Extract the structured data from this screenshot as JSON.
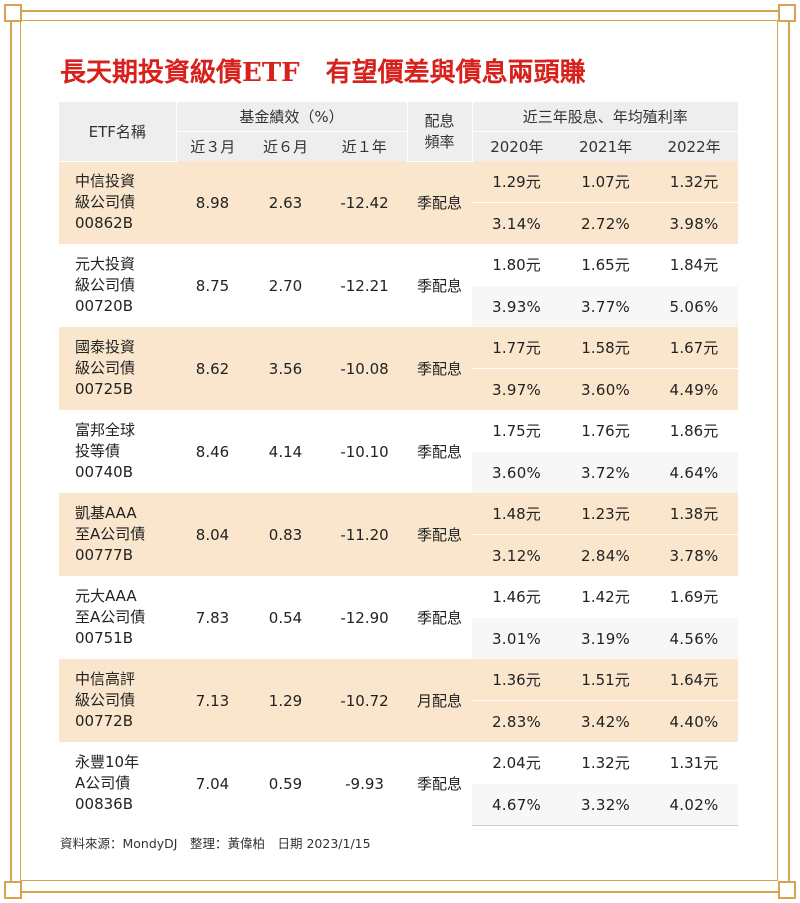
{
  "title": "長天期投資級債ETF　有望價差與債息兩頭賺",
  "headers": {
    "etf_name": "ETF名稱",
    "performance_group": "基金績效（%）",
    "perf_3m": "近３月",
    "perf_6m": "近６月",
    "perf_1y": "近１年",
    "freq_line1": "配息",
    "freq_line2": "頻率",
    "dividend_group": "近三年股息、年均殖利率",
    "y2020": "2020年",
    "y2021": "2021年",
    "y2022": "2022年"
  },
  "rows": [
    {
      "name": [
        "中信投資",
        "級公司債",
        "00862B"
      ],
      "p3m": "8.98",
      "p6m": "2.63",
      "p1y": "-12.42",
      "freq": "季配息",
      "div": [
        "1.29元",
        "1.07元",
        "1.32元"
      ],
      "yld": [
        "3.14%",
        "2.72%",
        "3.98%"
      ]
    },
    {
      "name": [
        "元大投資",
        "級公司債",
        "00720B"
      ],
      "p3m": "8.75",
      "p6m": "2.70",
      "p1y": "-12.21",
      "freq": "季配息",
      "div": [
        "1.80元",
        "1.65元",
        "1.84元"
      ],
      "yld": [
        "3.93%",
        "3.77%",
        "5.06%"
      ]
    },
    {
      "name": [
        "國泰投資",
        "級公司債",
        "00725B"
      ],
      "p3m": "8.62",
      "p6m": "3.56",
      "p1y": "-10.08",
      "freq": "季配息",
      "div": [
        "1.77元",
        "1.58元",
        "1.67元"
      ],
      "yld": [
        "3.97%",
        "3.60%",
        "4.49%"
      ]
    },
    {
      "name": [
        "富邦全球",
        "投等債",
        "00740B"
      ],
      "p3m": "8.46",
      "p6m": "4.14",
      "p1y": "-10.10",
      "freq": "季配息",
      "div": [
        "1.75元",
        "1.76元",
        "1.86元"
      ],
      "yld": [
        "3.60%",
        "3.72%",
        "4.64%"
      ]
    },
    {
      "name": [
        "凱基AAA",
        "至A公司債",
        "00777B"
      ],
      "p3m": "8.04",
      "p6m": "0.83",
      "p1y": "-11.20",
      "freq": "季配息",
      "div": [
        "1.48元",
        "1.23元",
        "1.38元"
      ],
      "yld": [
        "3.12%",
        "2.84%",
        "3.78%"
      ]
    },
    {
      "name": [
        "元大AAA",
        "至A公司債",
        "00751B"
      ],
      "p3m": "7.83",
      "p6m": "0.54",
      "p1y": "-12.90",
      "freq": "季配息",
      "div": [
        "1.46元",
        "1.42元",
        "1.69元"
      ],
      "yld": [
        "3.01%",
        "3.19%",
        "4.56%"
      ]
    },
    {
      "name": [
        "中信高評",
        "級公司債",
        "00772B"
      ],
      "p3m": "7.13",
      "p6m": "1.29",
      "p1y": "-10.72",
      "freq": "月配息",
      "div": [
        "1.36元",
        "1.51元",
        "1.64元"
      ],
      "yld": [
        "2.83%",
        "3.42%",
        "4.40%"
      ]
    },
    {
      "name": [
        "永豐10年",
        "A公司債",
        "00836B"
      ],
      "p3m": "7.04",
      "p6m": "0.59",
      "p1y": "-9.93",
      "freq": "季配息",
      "div": [
        "2.04元",
        "1.32元",
        "1.31元"
      ],
      "yld": [
        "4.67%",
        "3.32%",
        "4.02%"
      ]
    }
  ],
  "source": "資料來源：MondyDJ　整理：黃偉柏　日期 2023/1/15",
  "colors": {
    "title": "#d7211c",
    "frame": "#d4a453",
    "row_highlight": "#fae6cc",
    "header": "#eeeeee"
  }
}
